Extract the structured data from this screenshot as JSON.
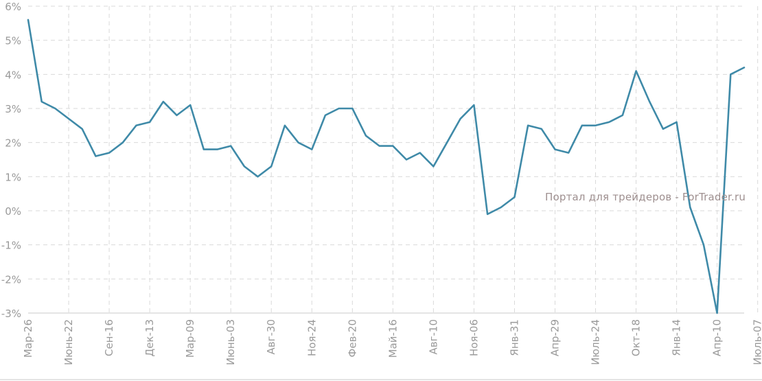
{
  "watermark": "Портал для трейдеров - ForTrader.ru",
  "colors": {
    "series": "#3f8aa8",
    "grid": "#d9d9d9",
    "text": "#9a9a9a"
  },
  "chart_data": {
    "type": "line",
    "title": "",
    "xlabel": "",
    "ylabel": "",
    "grid": true,
    "ylim": [
      -3,
      6
    ],
    "y_ticks": [
      "6%",
      "5%",
      "4%",
      "3%",
      "2%",
      "1%",
      "0%",
      "-1%",
      "-2%",
      "-3%"
    ],
    "x_tick_labels": [
      "Мар-26",
      "Июнь-22",
      "Сен-16",
      "Дек-13",
      "Мар-09",
      "Июнь-03",
      "Авг-30",
      "Ноя-24",
      "Фев-20",
      "Май-16",
      "Авг-10",
      "Ноя-06",
      "Янв-31",
      "Апр-29",
      "Июль-24",
      "Окт-18",
      "Янв-14",
      "Апр-10",
      "Июль-07"
    ],
    "x_tick_index": [
      0,
      3,
      6,
      9,
      12,
      15,
      18,
      21,
      24,
      27,
      30,
      33,
      36,
      39,
      42,
      45,
      48,
      51,
      54
    ],
    "series": [
      {
        "values": [
          5.6,
          3.2,
          3.0,
          2.7,
          2.4,
          1.6,
          1.7,
          2.0,
          2.5,
          2.6,
          3.2,
          2.8,
          3.1,
          1.8,
          1.8,
          1.9,
          1.3,
          1.0,
          1.3,
          2.5,
          2.0,
          1.8,
          2.8,
          3.0,
          3.0,
          2.2,
          1.9,
          1.9,
          1.5,
          1.7,
          1.3,
          2.0,
          2.7,
          3.1,
          -0.1,
          0.1,
          0.4,
          2.5,
          2.4,
          1.8,
          1.7,
          2.5,
          2.5,
          2.6,
          2.8,
          4.1,
          3.2,
          2.4,
          2.6,
          0.1,
          -1.0,
          -3.0,
          4.0,
          4.2
        ]
      }
    ]
  }
}
